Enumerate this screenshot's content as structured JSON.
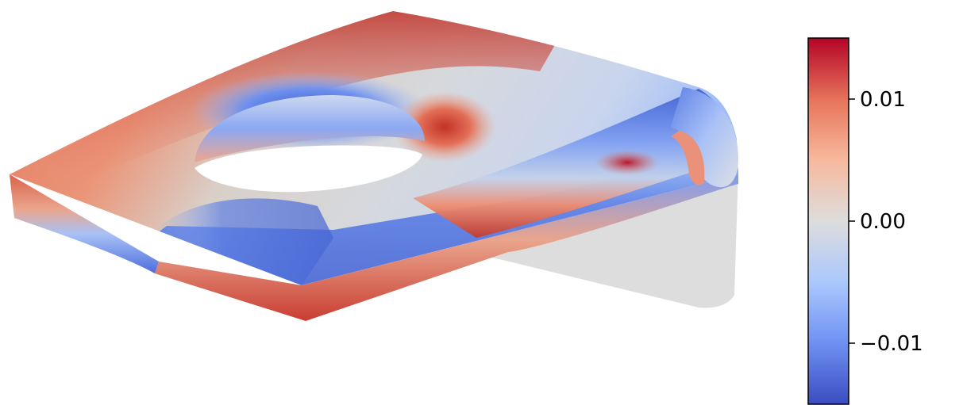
{
  "figure": {
    "colormap": "coolwarm",
    "colormap_stops": [
      "#3b4cc0",
      "#6f92f3",
      "#aac7fd",
      "#dddddd",
      "#f7b89c",
      "#e7745b",
      "#b40426"
    ],
    "uncolored_face_color": "#dddddd"
  },
  "colorbar": {
    "vmin": -0.015,
    "vmax": 0.015,
    "ticks": [
      {
        "value": 0.01,
        "label": "0.01"
      },
      {
        "value": 0.0,
        "label": "0.00"
      },
      {
        "value": -0.01,
        "label": "−0.01"
      }
    ]
  }
}
